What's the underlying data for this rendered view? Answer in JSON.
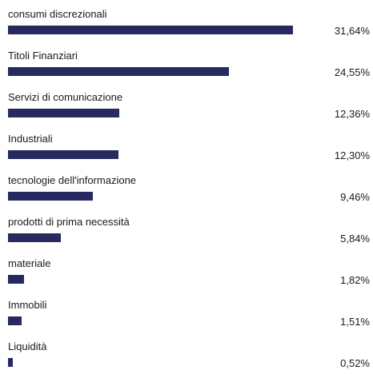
{
  "chart_data": {
    "type": "bar",
    "orientation": "horizontal",
    "categories": [
      "consumi discrezionali",
      "Titoli Finanziari",
      "Servizi di comunicazione",
      "Industriali",
      "tecnologie dell'informazione",
      "prodotti di prima necessità",
      "materiale",
      "Immobili",
      "Liquidità"
    ],
    "values": [
      31.64,
      24.55,
      12.36,
      12.3,
      9.46,
      5.84,
      1.82,
      1.51,
      0.52
    ],
    "value_labels": [
      "31,64%",
      "24,55%",
      "12,36%",
      "12,30%",
      "9,46%",
      "5,84%",
      "1,82%",
      "1,51%",
      "0,52%"
    ],
    "unit": "%",
    "bar_color": "#272a5e",
    "xlim": [
      0,
      32
    ],
    "grid": false,
    "legend": "none"
  }
}
